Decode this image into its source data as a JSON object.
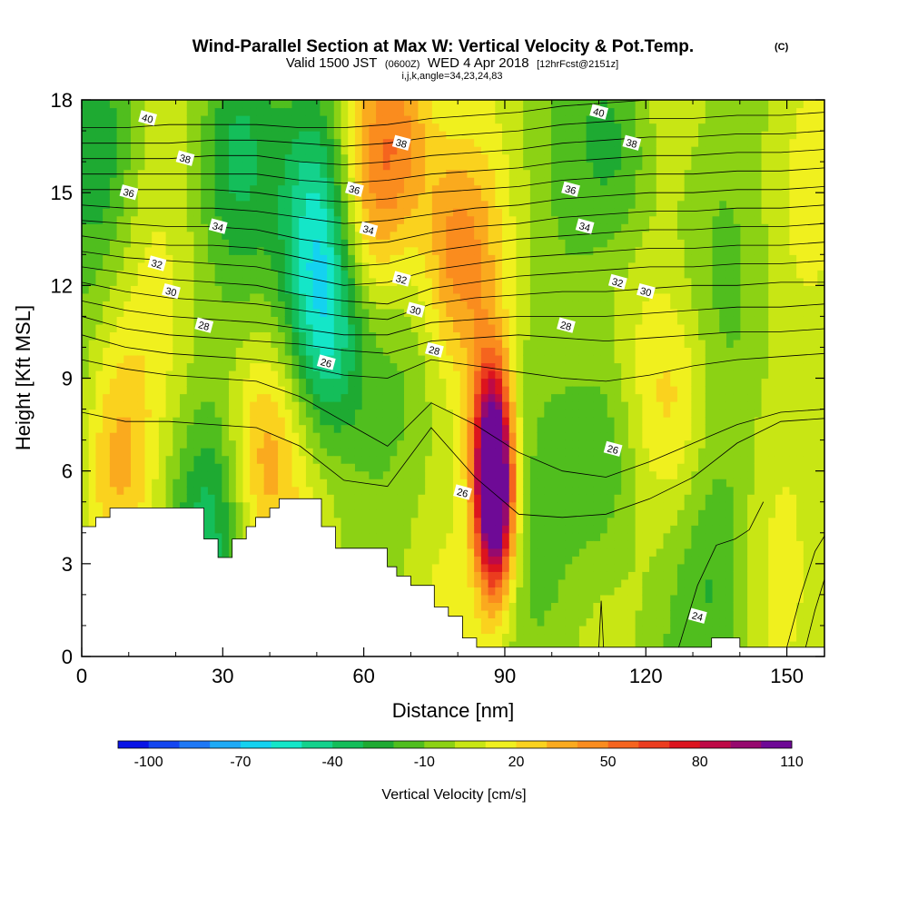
{
  "chart_data": {
    "type": "heatmap",
    "title": "Wind-Parallel Section at Max W: Vertical Velocity & Pot.Temp.",
    "title_suffix": "(C)",
    "subtitle": {
      "valid_prefix": "Valid 1500 JST",
      "utc": "(0600Z)",
      "date": "WED 4 Apr 2018",
      "forecast": "[12hrFcst@2151z]"
    },
    "grid_info": "i,j,k,angle=34,23,24,83",
    "xlabel": "Distance [nm]",
    "ylabel": "Height [Kft MSL]",
    "xlim": [
      0,
      158
    ],
    "ylim": [
      0,
      18
    ],
    "x_ticks": [
      "0",
      "30",
      "60",
      "90",
      "120",
      "150"
    ],
    "y_ticks": [
      "0",
      "3",
      "6",
      "9",
      "12",
      "15",
      "18"
    ],
    "colorbar": {
      "label": "Vertical Velocity [cm/s]",
      "tick_labels": [
        "-100",
        "-70",
        "-40",
        "-10",
        "20",
        "50",
        "80",
        "110"
      ],
      "colors": [
        "#0a14e6",
        "#1446f0",
        "#1e78f5",
        "#1eaaf5",
        "#14d2f0",
        "#14e6c8",
        "#14d28c",
        "#14be5a",
        "#1eaa32",
        "#50be1e",
        "#8cd214",
        "#c8e614",
        "#f0f01e",
        "#fad21e",
        "#faaa1e",
        "#fa8c1e",
        "#f5641e",
        "#eb3c1e",
        "#dc141e",
        "#be0a46",
        "#960a6e",
        "#6e0a96"
      ]
    },
    "velocity_features": [
      {
        "x": 88,
        "y": 5.0,
        "value": 110
      },
      {
        "x": 87,
        "y": 7.0,
        "value": 70
      },
      {
        "x": 52,
        "y": 10.0,
        "value": -40
      },
      {
        "x": 50,
        "y": 13.0,
        "value": -40
      },
      {
        "x": 50,
        "y": 16.5,
        "value": -30
      },
      {
        "x": 62,
        "y": 14.5,
        "value": 35
      },
      {
        "x": 68,
        "y": 17.5,
        "value": 40
      },
      {
        "x": 80,
        "y": 13.0,
        "value": 35
      },
      {
        "x": 112,
        "y": 6.5,
        "value": -25
      },
      {
        "x": 38,
        "y": 6.5,
        "value": 30
      },
      {
        "x": 7,
        "y": 6.5,
        "value": 30
      },
      {
        "x": 127,
        "y": 8.5,
        "value": 20
      },
      {
        "x": 27,
        "y": 4.5,
        "value": -25
      },
      {
        "x": 4,
        "y": 15.5,
        "value": -20
      },
      {
        "x": 33,
        "y": 16.5,
        "value": -20
      },
      {
        "x": 115,
        "y": 16.5,
        "value": -20
      },
      {
        "x": 136,
        "y": 3.0,
        "value": -15
      }
    ],
    "theta_contours": {
      "labeled": [
        24,
        26,
        28,
        30,
        32,
        34,
        36,
        38,
        40
      ],
      "levels": [
        {
          "theta": 25,
          "y": [
            7.9,
            7.6,
            7.6,
            7.5,
            7.4,
            6.8,
            5.7,
            5.5,
            7.4,
            5.8,
            4.6,
            4.5,
            4.6,
            5.1,
            5.8,
            6.9,
            7.6,
            7.7
          ]
        },
        {
          "theta": 26,
          "y": [
            9.6,
            9.3,
            9.1,
            9.0,
            8.9,
            8.4,
            7.6,
            6.8,
            8.2,
            7.5,
            6.6,
            6.0,
            5.8,
            6.3,
            6.9,
            7.5,
            7.9,
            8.0
          ]
        },
        {
          "theta": 27,
          "y": [
            10.4,
            10.0,
            9.8,
            9.7,
            9.6,
            9.4,
            9.1,
            9.0,
            9.6,
            9.4,
            9.2,
            9.0,
            8.9,
            9.1,
            9.4,
            9.6,
            9.7,
            9.8
          ]
        },
        {
          "theta": 28,
          "y": [
            11.0,
            10.6,
            10.4,
            10.3,
            10.2,
            10.1,
            9.9,
            9.8,
            10.2,
            10.3,
            10.4,
            10.3,
            10.2,
            10.3,
            10.4,
            10.5,
            10.5,
            10.6
          ]
        },
        {
          "theta": 29,
          "y": [
            11.5,
            11.2,
            11.0,
            10.9,
            10.8,
            10.6,
            10.4,
            10.4,
            10.8,
            10.9,
            11.0,
            11.0,
            11.0,
            11.1,
            11.2,
            11.3,
            11.3,
            11.4
          ]
        },
        {
          "theta": 30,
          "y": [
            12.1,
            11.8,
            11.6,
            11.5,
            11.4,
            11.2,
            11.0,
            10.9,
            11.4,
            11.6,
            11.7,
            11.8,
            11.8,
            11.9,
            12.0,
            12.0,
            12.1,
            12.1
          ]
        },
        {
          "theta": 31,
          "y": [
            12.6,
            12.4,
            12.2,
            12.1,
            12.0,
            11.7,
            11.5,
            11.4,
            11.9,
            12.1,
            12.3,
            12.4,
            12.5,
            12.6,
            12.6,
            12.7,
            12.7,
            12.8
          ]
        },
        {
          "theta": 32,
          "y": [
            13.1,
            12.9,
            12.8,
            12.7,
            12.6,
            12.3,
            12.0,
            12.1,
            12.5,
            12.7,
            12.9,
            13.0,
            13.1,
            13.2,
            13.2,
            13.3,
            13.3,
            13.4
          ]
        },
        {
          "theta": 33,
          "y": [
            13.6,
            13.4,
            13.3,
            13.3,
            13.2,
            12.9,
            12.6,
            12.7,
            13.1,
            13.3,
            13.5,
            13.6,
            13.7,
            13.8,
            13.8,
            13.9,
            13.9,
            14.0
          ]
        },
        {
          "theta": 34,
          "y": [
            14.1,
            14.0,
            13.9,
            13.9,
            13.8,
            13.5,
            13.3,
            13.4,
            13.7,
            13.9,
            14.0,
            14.2,
            14.3,
            14.4,
            14.4,
            14.5,
            14.5,
            14.6
          ]
        },
        {
          "theta": 35,
          "y": [
            14.6,
            14.5,
            14.5,
            14.5,
            14.4,
            14.2,
            14.0,
            14.1,
            14.3,
            14.5,
            14.6,
            14.8,
            14.9,
            15.0,
            15.0,
            15.1,
            15.1,
            15.2
          ]
        },
        {
          "theta": 36,
          "y": [
            15.1,
            15.1,
            15.1,
            15.1,
            15.0,
            14.8,
            14.7,
            14.8,
            15.0,
            15.1,
            15.2,
            15.4,
            15.5,
            15.6,
            15.6,
            15.7,
            15.7,
            15.8
          ]
        },
        {
          "theta": 37,
          "y": [
            15.6,
            15.6,
            15.6,
            15.6,
            15.6,
            15.4,
            15.3,
            15.4,
            15.6,
            15.7,
            15.8,
            16.0,
            16.1,
            16.2,
            16.2,
            16.3,
            16.3,
            16.4
          ]
        },
        {
          "theta": 38,
          "y": [
            16.1,
            16.1,
            16.1,
            16.2,
            16.2,
            16.0,
            15.9,
            16.0,
            16.2,
            16.3,
            16.4,
            16.6,
            16.7,
            16.8,
            16.8,
            16.9,
            16.9,
            17.0
          ]
        },
        {
          "theta": 39,
          "y": [
            16.6,
            16.6,
            16.6,
            16.7,
            16.7,
            16.6,
            16.5,
            16.6,
            16.8,
            16.9,
            17.0,
            17.2,
            17.3,
            17.4,
            17.4,
            17.5,
            17.5,
            17.6
          ]
        },
        {
          "theta": 40,
          "y": [
            17.1,
            17.1,
            17.2,
            17.2,
            17.2,
            17.1,
            17.1,
            17.2,
            17.4,
            17.5,
            17.6,
            17.8,
            17.9,
            18.0,
            18.0,
            18.0,
            18.0,
            18.0
          ]
        }
      ],
      "labels": [
        {
          "text": "40",
          "x": 14,
          "y": 17.4
        },
        {
          "text": "38",
          "x": 22,
          "y": 16.1
        },
        {
          "text": "36",
          "x": 10,
          "y": 15.0
        },
        {
          "text": "34",
          "x": 29,
          "y": 13.9
        },
        {
          "text": "32",
          "x": 16,
          "y": 12.7
        },
        {
          "text": "30",
          "x": 19,
          "y": 11.8
        },
        {
          "text": "28",
          "x": 26,
          "y": 10.7
        },
        {
          "text": "26",
          "x": 52,
          "y": 9.5
        },
        {
          "text": "38",
          "x": 68,
          "y": 16.6
        },
        {
          "text": "36",
          "x": 58,
          "y": 15.1
        },
        {
          "text": "34",
          "x": 61,
          "y": 13.8
        },
        {
          "text": "32",
          "x": 68,
          "y": 12.2
        },
        {
          "text": "30",
          "x": 71,
          "y": 11.2
        },
        {
          "text": "28",
          "x": 75,
          "y": 9.9
        },
        {
          "text": "26",
          "x": 81,
          "y": 5.3
        },
        {
          "text": "40",
          "x": 110,
          "y": 17.6
        },
        {
          "text": "38",
          "x": 117,
          "y": 16.6
        },
        {
          "text": "36",
          "x": 104,
          "y": 15.1
        },
        {
          "text": "34",
          "x": 107,
          "y": 13.9
        },
        {
          "text": "32",
          "x": 114,
          "y": 12.1
        },
        {
          "text": "30",
          "x": 120,
          "y": 11.8
        },
        {
          "text": "28",
          "x": 103,
          "y": 10.7
        },
        {
          "text": "26",
          "x": 113,
          "y": 6.7
        },
        {
          "text": "24",
          "x": 131,
          "y": 1.3
        }
      ]
    },
    "terrain_kft": [
      [
        0,
        4.2
      ],
      [
        3,
        4.2
      ],
      [
        3,
        4.5
      ],
      [
        6,
        4.5
      ],
      [
        6,
        4.8
      ],
      [
        26,
        4.8
      ],
      [
        26,
        3.8
      ],
      [
        29,
        3.8
      ],
      [
        29,
        3.2
      ],
      [
        32,
        3.2
      ],
      [
        32,
        3.8
      ],
      [
        35,
        3.8
      ],
      [
        35,
        4.2
      ],
      [
        37,
        4.2
      ],
      [
        37,
        4.5
      ],
      [
        40,
        4.5
      ],
      [
        40,
        4.8
      ],
      [
        42,
        4.8
      ],
      [
        42,
        5.1
      ],
      [
        51,
        5.1
      ],
      [
        51,
        4.2
      ],
      [
        54,
        4.2
      ],
      [
        54,
        3.5
      ],
      [
        65,
        3.5
      ],
      [
        65,
        2.9
      ],
      [
        67,
        2.9
      ],
      [
        67,
        2.6
      ],
      [
        70,
        2.6
      ],
      [
        70,
        2.3
      ],
      [
        75,
        2.3
      ],
      [
        75,
        1.6
      ],
      [
        78,
        1.6
      ],
      [
        78,
        1.3
      ],
      [
        81,
        1.3
      ],
      [
        81,
        0.6
      ],
      [
        84,
        0.6
      ],
      [
        84,
        0.3
      ],
      [
        134,
        0.3
      ],
      [
        134,
        0.6
      ],
      [
        140,
        0.6
      ],
      [
        140,
        0.3
      ],
      [
        158,
        0.3
      ]
    ]
  }
}
